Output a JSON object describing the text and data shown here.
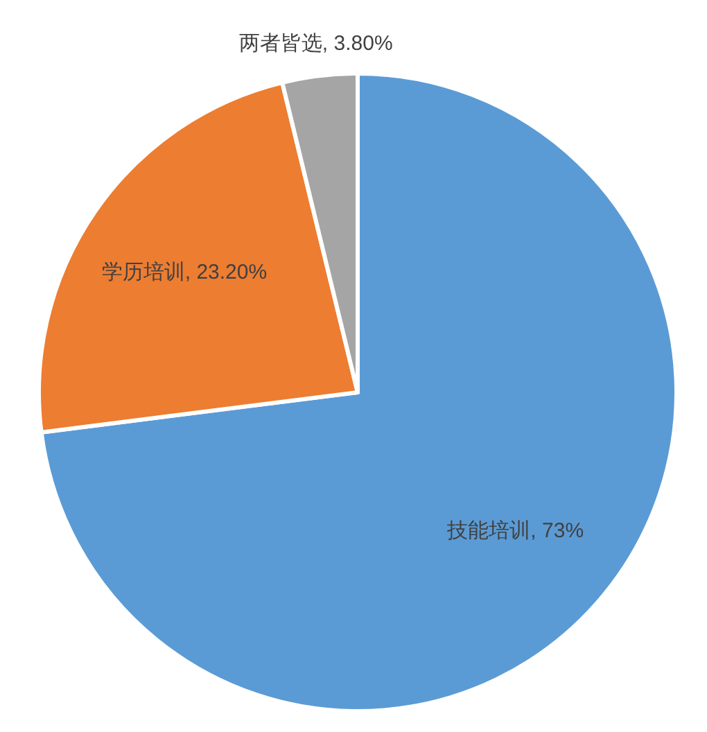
{
  "chart_data": {
    "type": "pie",
    "categories": [
      "技能培训",
      "学历培训",
      "两者皆选"
    ],
    "values": [
      73,
      23.2,
      3.8
    ],
    "colors": [
      "#5b9bd5",
      "#ed7d31",
      "#a5a5a5"
    ],
    "value_labels": [
      "73%",
      "23.20%",
      "3.80%"
    ]
  }
}
